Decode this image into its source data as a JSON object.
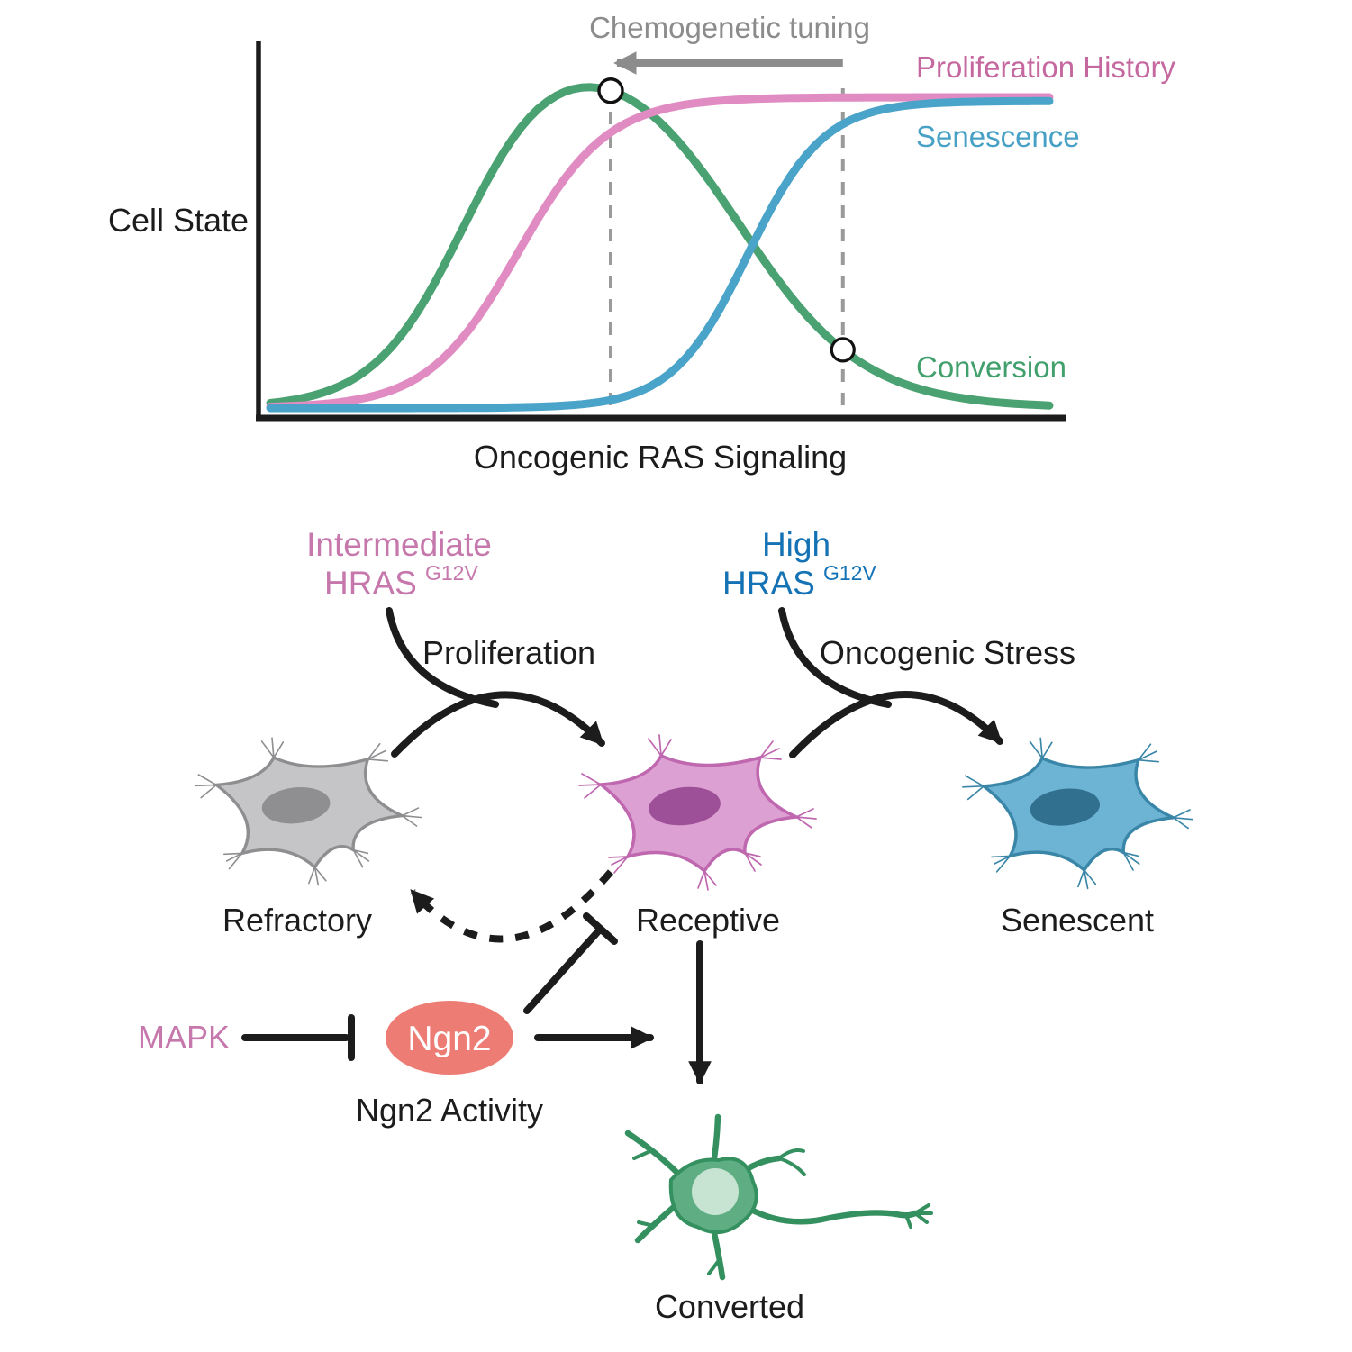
{
  "chart_data": {
    "type": "line",
    "title_annotation": "Chemogenetic tuning",
    "x_axis_label": "Oncogenic RAS Signaling",
    "y_axis_label": "Cell State",
    "axes_numeric": false,
    "grid": false,
    "legend_position": "right-inline",
    "series": [
      {
        "name": "Proliferation History",
        "color": "#e08cc3",
        "label_color": "#c5689f",
        "shape": "sigmoid",
        "midpoint": 0.318,
        "steepness": 0.0578,
        "amplitude": 1.0
      },
      {
        "name": "Senescence",
        "color": "#4aa3c8",
        "label_color": "#47a0c5",
        "shape": "sigmoid",
        "midpoint": 0.613,
        "steepness": 0.0486,
        "amplitude": 0.988
      },
      {
        "name": "Conversion",
        "color": "#4aa171",
        "label_color": "#41a06c",
        "shape": "rise_fall",
        "rise_mid": 0.25,
        "rise_k": 0.058,
        "fall_mid": 0.6,
        "fall_k": 0.08,
        "amplitude": 1.2
      }
    ],
    "reference_lines": [
      {
        "x": 0.437
      },
      {
        "x": 0.735
      }
    ],
    "reference_points_on_series": "Conversion",
    "tuning_arrow": {
      "from_x": 0.735,
      "to_x": 0.445,
      "direction": "left",
      "color": "#8c8c8c"
    }
  },
  "labels": {
    "tuning": "Chemogenetic tuning",
    "y_axis": "Cell State",
    "x_axis": "Oncogenic RAS Signaling",
    "intermediate": "Intermediate",
    "high": "High",
    "hras": "HRAS",
    "hras_sup": "G12V",
    "proliferation": "Proliferation",
    "oncogenic_stress": "Oncogenic Stress",
    "refractory": "Refractory",
    "receptive": "Receptive",
    "senescent": "Senescent",
    "mapk": "MAPK",
    "ngn2": "Ngn2",
    "ngn2_activity": "Ngn2 Activity",
    "converted": "Converted"
  },
  "colors": {
    "black_text": "#1c1c1c",
    "annotation_gray": "#8c8c8c",
    "hras_intermediate_pink": "#c678ad",
    "hras_high_blue": "#1573b5",
    "mapk_pink": "#c678ad",
    "ngn2_fill": "#ed7d74",
    "ngn2_text": "#ffffff",
    "cells": {
      "refractory_fill": "#c5c5c7",
      "refractory_stroke": "#8e8e90",
      "refractory_nucleus": "#8f8f92",
      "receptive_fill": "#dda0d3",
      "receptive_stroke": "#bf67af",
      "receptive_nucleus": "#9d5097",
      "senescent_fill": "#6db4d4",
      "senescent_stroke": "#3a86a8",
      "senescent_nucleus": "#31708e",
      "converted_fill": "#5fae83",
      "converted_stroke": "#35905f",
      "converted_nucleus": "#c7e4d2"
    }
  }
}
